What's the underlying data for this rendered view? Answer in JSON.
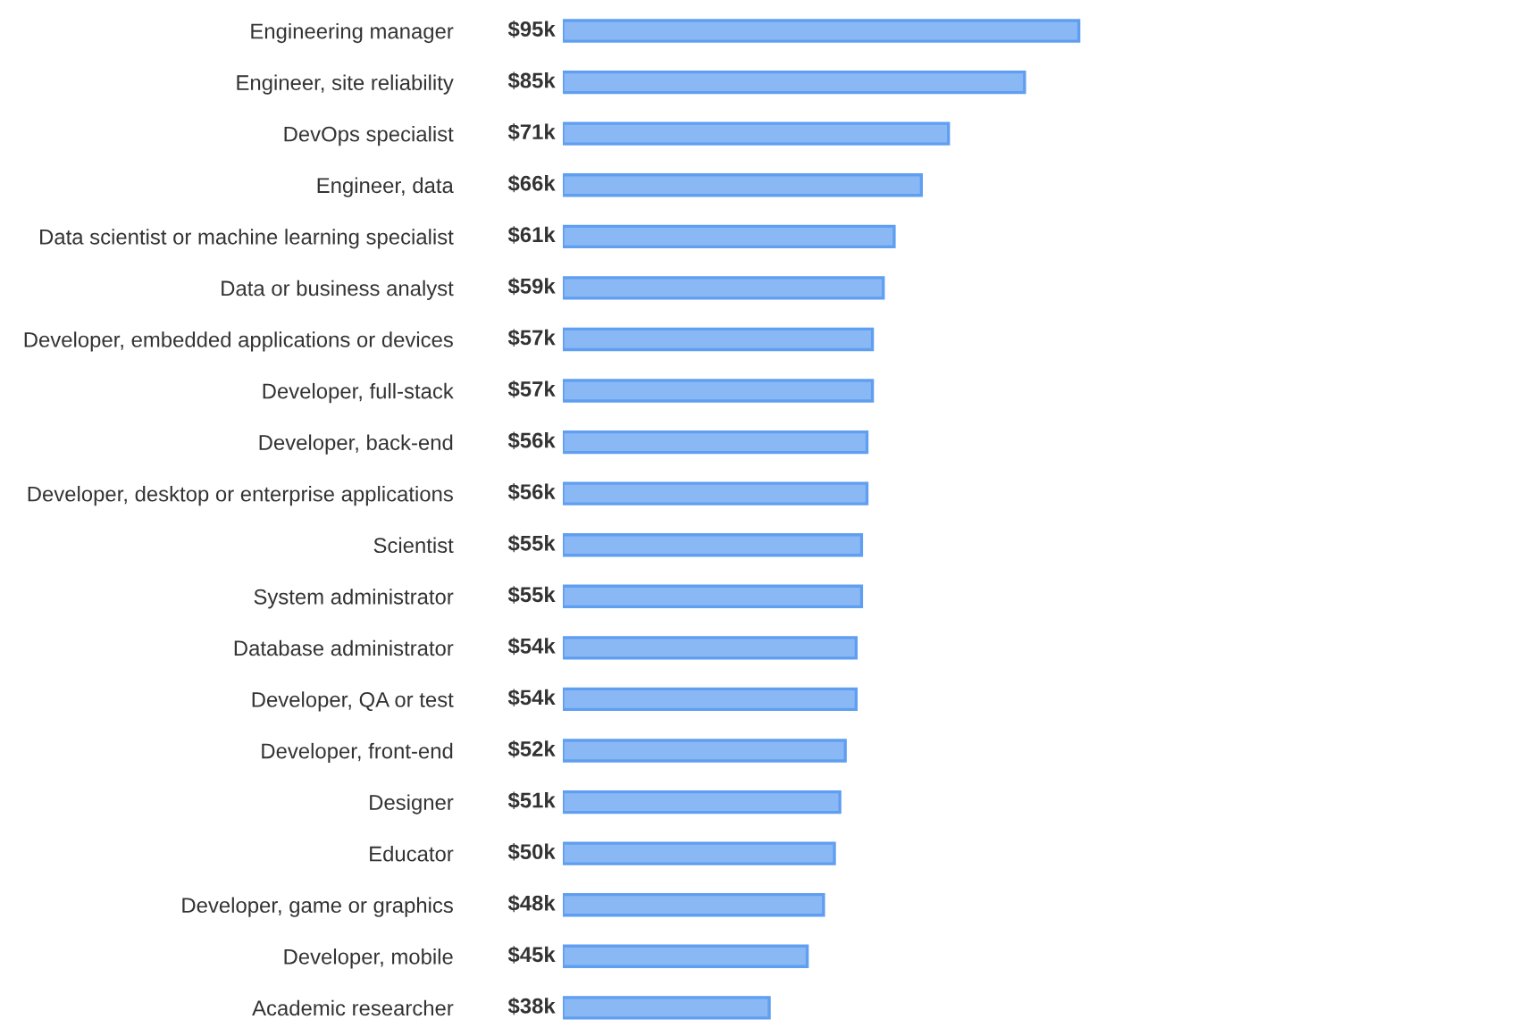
{
  "chart_data": {
    "type": "bar",
    "orientation": "horizontal",
    "categories": [
      "Engineering manager",
      "Engineer, site reliability",
      "DevOps specialist",
      "Engineer, data",
      "Data scientist or machine learning specialist",
      "Data or business analyst",
      "Developer, embedded applications or devices",
      "Developer, full-stack",
      "Developer, back-end",
      "Developer, desktop or enterprise applications",
      "Scientist",
      "System administrator",
      "Database administrator",
      "Developer, QA or test",
      "Developer, front-end",
      "Designer",
      "Educator",
      "Developer, game or graphics",
      "Developer, mobile",
      "Academic researcher"
    ],
    "values": [
      95,
      85,
      71,
      66,
      61,
      59,
      57,
      57,
      56,
      56,
      55,
      55,
      54,
      54,
      52,
      51,
      50,
      48,
      45,
      38
    ],
    "value_labels": [
      "$95k",
      "$85k",
      "$71k",
      "$66k",
      "$61k",
      "$59k",
      "$57k",
      "$57k",
      "$56k",
      "$56k",
      "$55k",
      "$55k",
      "$54k",
      "$54k",
      "$52k",
      "$51k",
      "$50k",
      "$48k",
      "$45k",
      "$38k"
    ],
    "color": "#8ab8f5",
    "grid": false,
    "legend": false
  }
}
